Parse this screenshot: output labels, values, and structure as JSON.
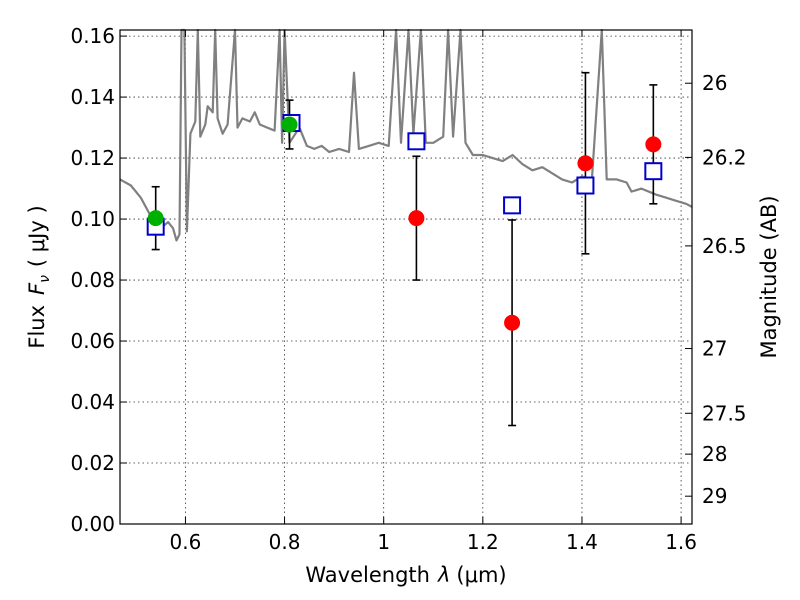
{
  "chart_data": {
    "type": "scatter",
    "x": {
      "label_prefix": "Wavelength",
      "label_symbol": "λ",
      "label_unit": "(μm)",
      "lim": [
        0.468,
        1.622
      ],
      "ticks": [
        0.6,
        0.8,
        1.0,
        1.2,
        1.4,
        1.6
      ],
      "tick_labels": [
        "0.6",
        "0.8",
        "1",
        "1.2",
        "1.4",
        "1.6"
      ]
    },
    "y": {
      "label_prefix": "Flux",
      "label_symbol": "F",
      "label_sub": "ν",
      "label_unit": "( μJy )",
      "lim": [
        0.0,
        0.162
      ],
      "ticks": [
        0.0,
        0.02,
        0.04,
        0.06,
        0.08,
        0.1,
        0.12,
        0.14,
        0.16
      ],
      "tick_labels": [
        "0.00",
        "0.02",
        "0.04",
        "0.06",
        "0.08",
        "0.10",
        "0.12",
        "0.14",
        "0.16"
      ]
    },
    "y2": {
      "label": "Magnitude (AB)",
      "ticks": [
        26,
        26.2,
        26.5,
        27,
        27.5,
        28,
        29
      ],
      "tick_labels": [
        "26",
        "26.2",
        "26.5",
        "27",
        "27.5",
        "28",
        "29"
      ]
    },
    "grid": true,
    "series": [
      {
        "name": "template spectrum",
        "kind": "line",
        "color": "#808080",
        "points": [
          [
            0.468,
            0.113
          ],
          [
            0.49,
            0.111
          ],
          [
            0.51,
            0.107
          ],
          [
            0.53,
            0.101
          ],
          [
            0.55,
            0.097
          ],
          [
            0.565,
            0.099
          ],
          [
            0.575,
            0.097
          ],
          [
            0.582,
            0.093
          ],
          [
            0.588,
            0.095
          ],
          [
            0.592,
            0.162
          ],
          [
            0.598,
            0.162
          ],
          [
            0.603,
            0.096
          ],
          [
            0.61,
            0.128
          ],
          [
            0.62,
            0.132
          ],
          [
            0.625,
            0.162
          ],
          [
            0.63,
            0.127
          ],
          [
            0.64,
            0.131
          ],
          [
            0.645,
            0.137
          ],
          [
            0.655,
            0.135
          ],
          [
            0.66,
            0.162
          ],
          [
            0.665,
            0.133
          ],
          [
            0.675,
            0.128
          ],
          [
            0.685,
            0.131
          ],
          [
            0.7,
            0.162
          ],
          [
            0.705,
            0.13
          ],
          [
            0.715,
            0.133
          ],
          [
            0.73,
            0.132
          ],
          [
            0.74,
            0.135
          ],
          [
            0.75,
            0.131
          ],
          [
            0.765,
            0.13
          ],
          [
            0.78,
            0.129
          ],
          [
            0.79,
            0.162
          ],
          [
            0.795,
            0.125
          ],
          [
            0.8,
            0.162
          ],
          [
            0.81,
            0.125
          ],
          [
            0.83,
            0.13
          ],
          [
            0.845,
            0.124
          ],
          [
            0.86,
            0.123
          ],
          [
            0.875,
            0.124
          ],
          [
            0.89,
            0.122
          ],
          [
            0.91,
            0.123
          ],
          [
            0.93,
            0.122
          ],
          [
            0.94,
            0.148
          ],
          [
            0.95,
            0.123
          ],
          [
            0.97,
            0.124
          ],
          [
            0.99,
            0.125
          ],
          [
            1.01,
            0.124
          ],
          [
            1.025,
            0.162
          ],
          [
            1.035,
            0.125
          ],
          [
            1.05,
            0.162
          ],
          [
            1.06,
            0.128
          ],
          [
            1.075,
            0.162
          ],
          [
            1.085,
            0.125
          ],
          [
            1.1,
            0.125
          ],
          [
            1.12,
            0.127
          ],
          [
            1.13,
            0.162
          ],
          [
            1.14,
            0.127
          ],
          [
            1.155,
            0.162
          ],
          [
            1.165,
            0.125
          ],
          [
            1.18,
            0.121
          ],
          [
            1.2,
            0.121
          ],
          [
            1.22,
            0.12
          ],
          [
            1.24,
            0.119
          ],
          [
            1.26,
            0.121
          ],
          [
            1.28,
            0.118
          ],
          [
            1.3,
            0.116
          ],
          [
            1.32,
            0.117
          ],
          [
            1.34,
            0.115
          ],
          [
            1.36,
            0.113
          ],
          [
            1.38,
            0.112
          ],
          [
            1.4,
            0.114
          ],
          [
            1.42,
            0.113
          ],
          [
            1.44,
            0.162
          ],
          [
            1.45,
            0.113
          ],
          [
            1.47,
            0.113
          ],
          [
            1.49,
            0.112
          ],
          [
            1.5,
            0.109
          ],
          [
            1.52,
            0.11
          ],
          [
            1.55,
            0.108
          ],
          [
            1.57,
            0.107
          ],
          [
            1.59,
            0.106
          ],
          [
            1.61,
            0.105
          ],
          [
            1.622,
            0.104
          ]
        ]
      },
      {
        "name": "red photometry",
        "kind": "circle",
        "color": "#ff0000",
        "points": [
          {
            "x": 1.066,
            "y": 0.1003,
            "err_low": 0.0203,
            "err_high": 0.0203
          },
          {
            "x": 1.259,
            "y": 0.066,
            "err_low": 0.0337,
            "err_high": 0.0337
          },
          {
            "x": 1.407,
            "y": 0.1183,
            "err_low": 0.0297,
            "err_high": 0.0297
          },
          {
            "x": 1.544,
            "y": 0.1245,
            "err_low": 0.0195,
            "err_high": 0.0195
          }
        ]
      },
      {
        "name": "green photometry",
        "kind": "circle",
        "color": "#00b000",
        "points": [
          {
            "x": 0.54,
            "y": 0.1003,
            "err_low": 0.0103,
            "err_high": 0.0103
          },
          {
            "x": 0.81,
            "y": 0.131,
            "err_low": 0.008,
            "err_high": 0.008
          }
        ]
      },
      {
        "name": "model bands",
        "kind": "square",
        "color": "#0000cc",
        "points": [
          {
            "x": 0.54,
            "y": 0.0975
          },
          {
            "x": 0.814,
            "y": 0.1315
          },
          {
            "x": 1.066,
            "y": 0.1255
          },
          {
            "x": 1.259,
            "y": 0.1045
          },
          {
            "x": 1.407,
            "y": 0.111
          },
          {
            "x": 1.544,
            "y": 0.1157
          }
        ]
      }
    ]
  }
}
